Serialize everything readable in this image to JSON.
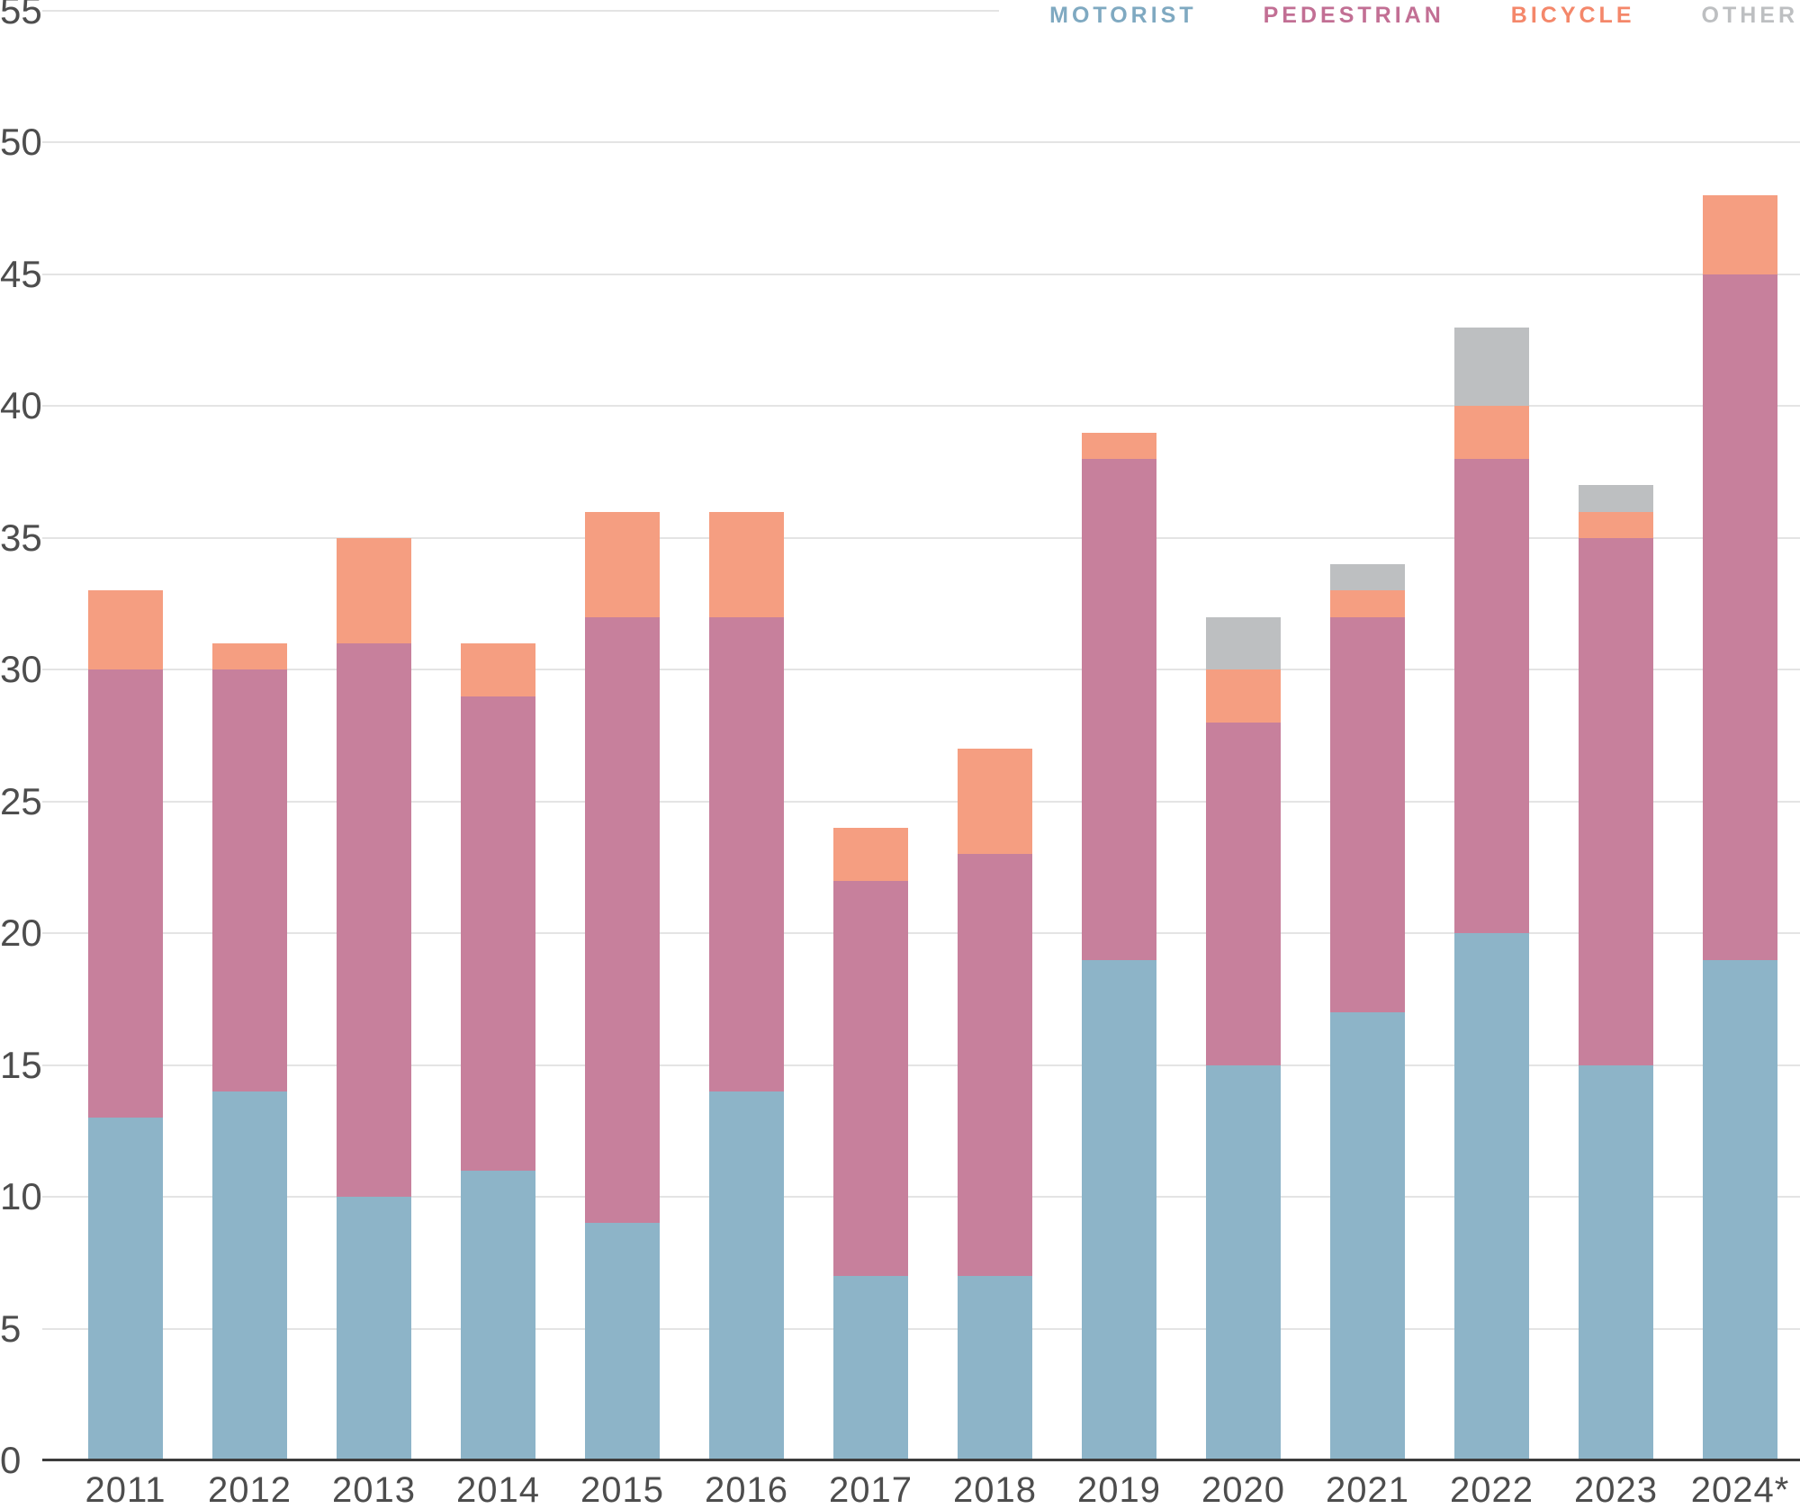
{
  "legend": [
    {
      "label": "MOTORIST",
      "color": "#7fa9c1"
    },
    {
      "label": "PEDESTRIAN",
      "color": "#c26f94"
    },
    {
      "label": "BICYCLE",
      "color": "#f4876a"
    },
    {
      "label": "OTHER",
      "color": "#bdbfc1"
    }
  ],
  "chart_data": {
    "type": "bar",
    "stacked": true,
    "title": "",
    "xlabel": "",
    "ylabel": "",
    "categories": [
      "2011",
      "2012",
      "2013",
      "2014",
      "2015",
      "2016",
      "2017",
      "2018",
      "2019",
      "2020",
      "2021",
      "2022",
      "2023",
      "2024*"
    ],
    "series": [
      {
        "name": "MOTORIST",
        "color": "#8db4c8",
        "values": [
          13,
          14,
          10,
          11,
          9,
          14,
          7,
          7,
          19,
          15,
          17,
          20,
          15,
          19
        ]
      },
      {
        "name": "PEDESTRIAN",
        "color": "#c7809c",
        "values": [
          17,
          16,
          21,
          18,
          23,
          18,
          15,
          16,
          19,
          13,
          15,
          18,
          20,
          26
        ]
      },
      {
        "name": "BICYCLE",
        "color": "#f59e81",
        "values": [
          3,
          1,
          4,
          2,
          4,
          4,
          2,
          4,
          1,
          2,
          1,
          2,
          1,
          3
        ]
      },
      {
        "name": "OTHER",
        "color": "#bdbfc1",
        "values": [
          0,
          0,
          0,
          0,
          0,
          0,
          0,
          0,
          0,
          2,
          1,
          3,
          1,
          0
        ]
      }
    ],
    "totals": [
      33,
      31,
      35,
      31,
      36,
      36,
      24,
      27,
      39,
      32,
      34,
      43,
      37,
      48
    ],
    "ylim": [
      0,
      55
    ],
    "yticks": [
      0,
      5,
      10,
      15,
      20,
      25,
      30,
      35,
      40,
      45,
      50,
      55
    ],
    "grid": true,
    "legend_position": "top-right"
  },
  "colors": {
    "background": "#ffffff",
    "gridline": "#e4e4e4",
    "axis_line": "#3c3c3c",
    "tick_label": "#4d4d4d"
  }
}
